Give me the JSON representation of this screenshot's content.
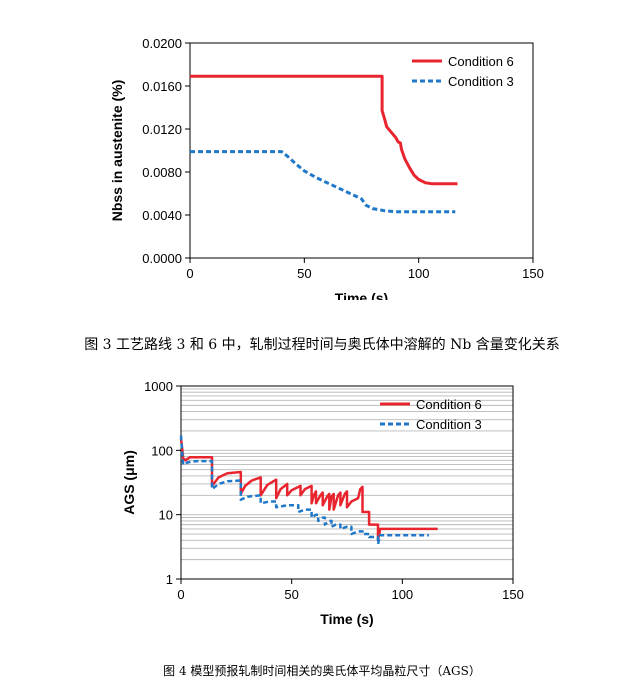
{
  "chart_data": [
    {
      "type": "line",
      "xlabel": "Time (s)",
      "ylabel": "Nbss in austenite (%)",
      "xlim": [
        0,
        150
      ],
      "ylim": [
        0,
        0.02
      ],
      "xticks": [
        "0",
        "50",
        "100",
        "150"
      ],
      "yticks": [
        "0.0000",
        "0.0040",
        "0.0080",
        "0.0120",
        "0.0160",
        "0.0200"
      ],
      "legend_position": "top-right",
      "series": [
        {
          "name": "Condition 6",
          "color": "#e8252e",
          "style": "solid",
          "points": [
            [
              0,
              0.0169
            ],
            [
              84,
              0.0169
            ],
            [
              84,
              0.0137
            ],
            [
              85,
              0.013
            ],
            [
              86,
              0.0122
            ],
            [
              88,
              0.0117
            ],
            [
              90,
              0.0112
            ],
            [
              91,
              0.0108
            ],
            [
              92,
              0.0107
            ],
            [
              92.5,
              0.0101
            ],
            [
              94,
              0.0092
            ],
            [
              96,
              0.0084
            ],
            [
              98,
              0.0077
            ],
            [
              100,
              0.0073
            ],
            [
              103,
              0.007
            ],
            [
              106,
              0.0069
            ],
            [
              110,
              0.0069
            ],
            [
              117,
              0.0069
            ]
          ]
        },
        {
          "name": "Condition 3",
          "color": "#1f78c8",
          "style": "dashed",
          "points": [
            [
              0,
              0.0099
            ],
            [
              40,
              0.0099
            ],
            [
              43,
              0.0094
            ],
            [
              46,
              0.0088
            ],
            [
              50,
              0.0081
            ],
            [
              55,
              0.0075
            ],
            [
              60,
              0.007
            ],
            [
              65,
              0.0065
            ],
            [
              70,
              0.006
            ],
            [
              75,
              0.0055
            ],
            [
              77,
              0.0049
            ],
            [
              80,
              0.0046
            ],
            [
              85,
              0.0044
            ],
            [
              90,
              0.0043
            ],
            [
              100,
              0.0043
            ],
            [
              116,
              0.0043
            ]
          ]
        }
      ]
    },
    {
      "type": "line",
      "xlabel": "Time (s)",
      "ylabel": "AGS (μm)",
      "xlim": [
        0,
        150
      ],
      "ylim": [
        1,
        1000
      ],
      "yscale": "log",
      "grid": "horizontal",
      "xticks": [
        "0",
        "50",
        "100",
        "150"
      ],
      "yticks": [
        "1",
        "10",
        "100",
        "1000"
      ],
      "legend_position": "top-right",
      "series": [
        {
          "name": "Condition 6",
          "color": "#e8252e",
          "style": "solid",
          "points": [
            [
              0,
              150
            ],
            [
              0.5,
              110
            ],
            [
              1,
              75
            ],
            [
              2,
              70
            ],
            [
              4,
              78
            ],
            [
              14,
              78
            ],
            [
              14,
              28
            ],
            [
              17,
              38
            ],
            [
              21,
              44
            ],
            [
              27,
              46
            ],
            [
              27,
              21
            ],
            [
              29,
              28
            ],
            [
              32,
              34
            ],
            [
              36,
              38
            ],
            [
              36,
              20
            ],
            [
              39,
              29
            ],
            [
              43,
              35
            ],
            [
              43,
              18
            ],
            [
              45,
              25
            ],
            [
              48,
              30
            ],
            [
              48,
              20
            ],
            [
              50,
              24
            ],
            [
              54,
              28
            ],
            [
              54,
              20
            ],
            [
              56,
              25
            ],
            [
              59,
              28
            ],
            [
              59,
              15
            ],
            [
              60,
              20
            ],
            [
              61,
              23
            ],
            [
              61,
              15
            ],
            [
              63,
              20
            ],
            [
              64,
              22
            ],
            [
              64,
              14
            ],
            [
              66,
              19
            ],
            [
              67,
              21
            ],
            [
              67,
              12
            ],
            [
              68,
              19
            ],
            [
              69,
              21
            ],
            [
              69,
              12
            ],
            [
              71,
              20
            ],
            [
              72,
              22
            ],
            [
              72,
              14
            ],
            [
              74,
              21
            ],
            [
              75,
              23
            ],
            [
              75,
              13
            ],
            [
              77,
              16
            ],
            [
              80,
              18
            ],
            [
              81,
              25
            ],
            [
              82,
              27
            ],
            [
              82,
              11
            ],
            [
              85,
              11
            ],
            [
              85,
              7
            ],
            [
              89,
              7
            ],
            [
              89,
              4
            ],
            [
              90,
              6
            ],
            [
              116,
              6
            ]
          ]
        },
        {
          "name": "Condition 3",
          "color": "#1f78c8",
          "style": "dashed",
          "points": [
            [
              0,
              170
            ],
            [
              0.5,
              95
            ],
            [
              1,
              60
            ],
            [
              3,
              65
            ],
            [
              7,
              68
            ],
            [
              14,
              68
            ],
            [
              14,
              25
            ],
            [
              17,
              30
            ],
            [
              21,
              33
            ],
            [
              27,
              34
            ],
            [
              27,
              17
            ],
            [
              30,
              19
            ],
            [
              36,
              20
            ],
            [
              36,
              15
            ],
            [
              40,
              16
            ],
            [
              43,
              16
            ],
            [
              43,
              13
            ],
            [
              48,
              14
            ],
            [
              53,
              14
            ],
            [
              53,
              11
            ],
            [
              56,
              12
            ],
            [
              59,
              12
            ],
            [
              59,
              9
            ],
            [
              61,
              10
            ],
            [
              62,
              10
            ],
            [
              62,
              8
            ],
            [
              64,
              9
            ],
            [
              65,
              9
            ],
            [
              65,
              7
            ],
            [
              67,
              8
            ],
            [
              68,
              8
            ],
            [
              68,
              6.5
            ],
            [
              70,
              7
            ],
            [
              72,
              7
            ],
            [
              72,
              6
            ],
            [
              75,
              6.5
            ],
            [
              77,
              6.5
            ],
            [
              77,
              5
            ],
            [
              80,
              5.5
            ],
            [
              82,
              5.5
            ],
            [
              82,
              5
            ],
            [
              85,
              5
            ],
            [
              85,
              4.5
            ],
            [
              89,
              4.5
            ],
            [
              89,
              3.5
            ],
            [
              90,
              4.8
            ],
            [
              112,
              4.8
            ]
          ]
        }
      ]
    }
  ],
  "captions": {
    "fig3": "图 3  工艺路线 3 和 6 中，轧制过程时间与奥氏体中溶解的 Nb 含量变化关系",
    "fig4": "图 4  模型预报轧制时间相关的奥氏体平均晶粒尺寸（AGS）"
  }
}
